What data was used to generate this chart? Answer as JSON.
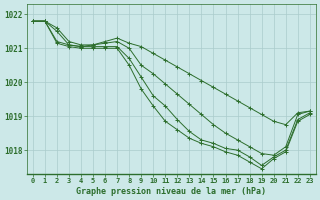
{
  "title": "Graphe pression niveau de la mer (hPa)",
  "x_labels": [
    "0",
    "1",
    "2",
    "3",
    "4",
    "5",
    "6",
    "7",
    "8",
    "9",
    "10",
    "11",
    "12",
    "13",
    "14",
    "15",
    "16",
    "17",
    "18",
    "19",
    "20",
    "21",
    "22",
    "23"
  ],
  "ylim": [
    1017.3,
    1022.3
  ],
  "yticks": [
    1018,
    1019,
    1020,
    1021,
    1022
  ],
  "background_color": "#cce8e8",
  "grid_color": "#aacccc",
  "line_color": "#2d6e2d",
  "lines": [
    [
      1021.8,
      1021.8,
      1021.6,
      1021.2,
      1021.1,
      1021.1,
      1021.2,
      1021.3,
      1021.15,
      1021.05,
      1020.85,
      1020.65,
      1020.45,
      1020.25,
      1020.05,
      1019.85,
      1019.65,
      1019.45,
      1019.25,
      1019.05,
      1018.85,
      1018.75,
      1019.1,
      1019.15
    ],
    [
      1021.8,
      1021.8,
      1021.5,
      1021.1,
      1021.05,
      1021.1,
      1021.15,
      1021.2,
      1021.0,
      1020.5,
      1020.25,
      1019.95,
      1019.65,
      1019.35,
      1019.05,
      1018.75,
      1018.5,
      1018.3,
      1018.1,
      1017.9,
      1017.85,
      1018.1,
      1019.05,
      1019.15
    ],
    [
      1021.8,
      1021.8,
      1021.2,
      1021.1,
      1021.05,
      1021.05,
      1021.05,
      1021.05,
      1020.7,
      1020.15,
      1019.6,
      1019.3,
      1018.9,
      1018.55,
      1018.3,
      1018.2,
      1018.05,
      1018.0,
      1017.8,
      1017.55,
      1017.8,
      1018.0,
      1018.9,
      1019.1
    ],
    [
      1021.8,
      1021.8,
      1021.15,
      1021.05,
      1021.0,
      1021.0,
      1021.0,
      1021.0,
      1020.5,
      1019.8,
      1019.3,
      1018.85,
      1018.6,
      1018.35,
      1018.2,
      1018.1,
      1017.95,
      1017.85,
      1017.65,
      1017.45,
      1017.75,
      1017.95,
      1018.85,
      1019.05
    ]
  ],
  "marker": "+"
}
